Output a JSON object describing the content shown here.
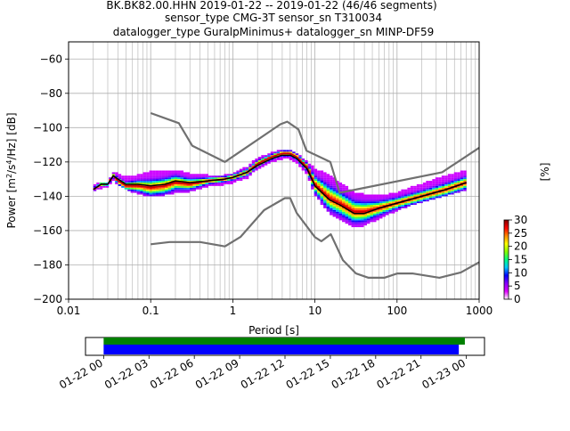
{
  "header": {
    "line1": "BK.BK82.00.HHN   2019-01-22 -- 2019-01-22  (46/46 segments)",
    "line2": "sensor_type CMG-3T sensor_sn T310034",
    "line3": "datalogger_type GuralpMinimus+ datalogger_sn MINP-DF59"
  },
  "colors": {
    "noise_model": "#707070",
    "mean_curve": "#000000",
    "mode_curve": "#cc0000",
    "timeline_top": "#008000",
    "timeline_bottom": "#0000ff"
  },
  "chart_data": [
    {
      "type": "heatmap",
      "title": "",
      "xlabel": "Period [s]",
      "ylabel_parts": [
        "Power [m",
        "2",
        "/s",
        "4",
        "/Hz] [dB]"
      ],
      "xscale": "log",
      "xlim": [
        0.01,
        1000
      ],
      "ylim": [
        -200,
        -50
      ],
      "x_ticks": [
        0.01,
        0.1,
        1,
        10,
        100,
        1000
      ],
      "x_tick_labels": [
        "0.01",
        "0.1",
        "1",
        "10",
        "100",
        "1000"
      ],
      "y_ticks": [
        -200,
        -180,
        -160,
        -140,
        -120,
        -100,
        -80,
        -60
      ],
      "y_tick_labels": [
        "−200",
        "−180",
        "−160",
        "−140",
        "−120",
        "−100",
        "−80",
        "−60"
      ],
      "grid": true,
      "series": [
        {
          "name": "",
          "role": "noise-high",
          "x": [
            0.1,
            0.22,
            0.32,
            0.8,
            3.8,
            4.6,
            6.3,
            7.9,
            15.4,
            20,
            354.8,
            10000
          ],
          "y": [
            -91.5,
            -97.4,
            -110.5,
            -120,
            -98,
            -96.5,
            -101,
            -113.5,
            -120,
            -138,
            -126,
            -80
          ]
        },
        {
          "name": "",
          "role": "noise-low",
          "x": [
            0.1,
            0.17,
            0.4,
            0.8,
            1.24,
            2.4,
            4.3,
            5,
            6,
            10,
            12,
            15.6,
            21.9,
            31.6,
            45,
            70,
            101,
            154,
            328,
            600,
            10000
          ],
          "y": [
            -168,
            -166.7,
            -166.7,
            -169.2,
            -163.7,
            -148.1,
            -141.1,
            -141.1,
            -149.7,
            -163.8,
            -166.2,
            -162.1,
            -177.2,
            -185,
            -187.5,
            -187.5,
            -185,
            -185,
            -187.5,
            -184.4,
            -151.5
          ]
        },
        {
          "name": "",
          "role": "mean",
          "x": [
            0.02,
            0.025,
            0.03,
            0.035,
            0.04,
            0.05,
            0.07,
            0.1,
            0.15,
            0.2,
            0.3,
            0.5,
            0.8,
            1,
            1.5,
            2,
            3,
            4,
            5,
            6,
            8,
            10,
            15,
            20,
            30,
            40,
            60,
            100,
            200,
            400,
            700
          ],
          "y": [
            -136,
            -133,
            -133,
            -128,
            -130,
            -133,
            -133,
            -134,
            -133,
            -131,
            -132,
            -131,
            -130,
            -129,
            -126,
            -122,
            -118,
            -116,
            -116,
            -118,
            -124,
            -134,
            -142,
            -145,
            -150,
            -150,
            -147,
            -144,
            -140,
            -136,
            -132
          ]
        },
        {
          "name": "",
          "role": "mode",
          "x": [
            0.02,
            0.025,
            0.03,
            0.035,
            0.04,
            0.05,
            0.07,
            0.1,
            0.15,
            0.2,
            0.3,
            0.5,
            0.8,
            1,
            1.5,
            2,
            3,
            4,
            5,
            6,
            8,
            10,
            15,
            20,
            30,
            40,
            60,
            100,
            200,
            400,
            700
          ],
          "y": [
            -136,
            -133,
            -133,
            -128,
            -131,
            -134,
            -134,
            -135,
            -134,
            -132,
            -133,
            -131,
            -130,
            -129,
            -126,
            -121,
            -117,
            -115,
            -115,
            -117,
            -123,
            -133,
            -141,
            -144,
            -149,
            -149,
            -147,
            -144,
            -140,
            -136,
            -132
          ]
        },
        {
          "name": "",
          "role": "psd-min",
          "x": [
            0.02,
            0.025,
            0.03,
            0.035,
            0.04,
            0.05,
            0.07,
            0.1,
            0.15,
            0.2,
            0.3,
            0.5,
            0.8,
            1,
            1.5,
            2,
            3,
            4,
            5,
            6,
            8,
            10,
            15,
            20,
            30,
            40,
            60,
            100,
            200,
            400,
            700
          ],
          "y": [
            -137,
            -135,
            -134,
            -130,
            -133,
            -136,
            -138,
            -140,
            -139,
            -138,
            -137,
            -134,
            -133,
            -132,
            -129,
            -124,
            -120,
            -118,
            -118,
            -120,
            -127,
            -139,
            -150,
            -153,
            -158,
            -157,
            -153,
            -148,
            -143,
            -139,
            -136
          ]
        },
        {
          "name": "",
          "role": "psd-max",
          "x": [
            0.02,
            0.025,
            0.03,
            0.035,
            0.04,
            0.05,
            0.07,
            0.1,
            0.15,
            0.2,
            0.3,
            0.5,
            0.8,
            1,
            1.5,
            2,
            3,
            4,
            5,
            6,
            8,
            10,
            15,
            20,
            30,
            40,
            60,
            100,
            200,
            400,
            700
          ],
          "y": [
            -134,
            -132,
            -132,
            -126,
            -127,
            -129,
            -128,
            -126,
            -125,
            -125,
            -127,
            -128,
            -128,
            -127,
            -123,
            -118,
            -115,
            -113,
            -113,
            -115,
            -120,
            -124,
            -128,
            -132,
            -138,
            -139,
            -140,
            -138,
            -133,
            -128,
            -125
          ]
        }
      ],
      "colorbar": {
        "label": "[%]",
        "min": 0,
        "max": 30,
        "ticks": [
          0,
          5,
          10,
          15,
          20,
          25,
          30
        ],
        "tick_labels": [
          "0",
          "5",
          "10",
          "15",
          "20",
          "25",
          "30"
        ],
        "colormap": [
          "#ffffff",
          "#e000ff",
          "#8800ff",
          "#0000ff",
          "#00c8ff",
          "#00ff80",
          "#88ff00",
          "#ffff00",
          "#ff8800",
          "#ff0000",
          "#800000"
        ]
      }
    },
    {
      "type": "timeline",
      "x_tick_labels": [
        "01-22 00",
        "01-22 03",
        "01-22 06",
        "01-22 09",
        "01-22 12",
        "01-22 15",
        "01-22 18",
        "01-22 21",
        "01-23 00"
      ],
      "x_hours": [
        0,
        3,
        6,
        9,
        12,
        15,
        18,
        21,
        24
      ],
      "xlim_hours": [
        -1.2,
        25.2
      ],
      "series": [
        {
          "name": "",
          "role": "data-coverage",
          "start_hour": 0,
          "end_hour": 23.9
        },
        {
          "name": "",
          "role": "psd-coverage",
          "start_hour": 0,
          "end_hour": 23.5
        }
      ]
    }
  ]
}
